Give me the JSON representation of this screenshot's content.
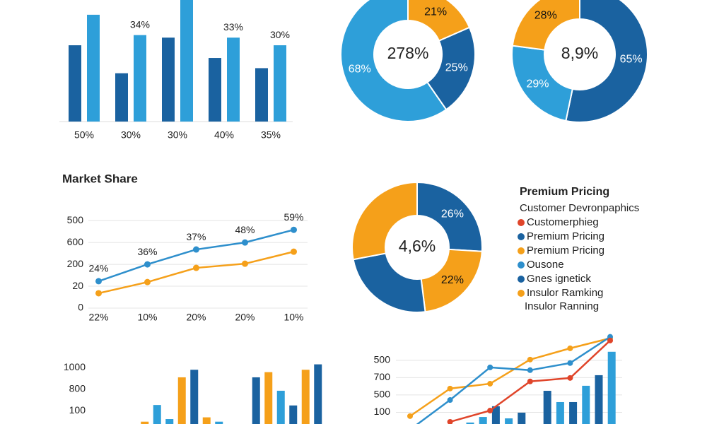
{
  "chart_data": [
    {
      "type": "grouped_bar",
      "categories": [
        "50%",
        "30%",
        "30%",
        "40%",
        "35%"
      ],
      "ylim": [
        0,
        47.8
      ],
      "series": [
        {
          "color": "#1a62a0",
          "values": [
            30,
            19,
            33,
            25,
            21
          ],
          "value_labels": [
            null,
            null,
            null,
            null,
            null
          ]
        },
        {
          "color": "#2e9fd9",
          "values": [
            42,
            34,
            48,
            33,
            30
          ],
          "value_labels": [
            null,
            "34%",
            null,
            "33%",
            "30%"
          ]
        }
      ]
    },
    {
      "type": "donut",
      "center_label": "278%",
      "values": [
        21,
        25,
        68
      ],
      "value_labels": [
        "21%",
        "25%",
        "68%"
      ],
      "colors": [
        "#f5a01a",
        "#1a62a0",
        "#2e9fd9"
      ]
    },
    {
      "type": "donut",
      "center_label": "8,9%",
      "values": [
        65,
        29,
        28
      ],
      "value_labels": [
        "65%",
        "29%",
        "28%"
      ],
      "colors": [
        "#1a62a0",
        "#2e9fd9",
        "#f5a01a"
      ]
    },
    {
      "type": "line",
      "title": "Market Share",
      "categories": [
        "22%",
        "10%",
        "20%",
        "20%",
        "10%"
      ],
      "ylim": [
        0,
        4.2
      ],
      "grid": true,
      "yticks": [
        {
          "value": 4,
          "label": "500"
        },
        {
          "value": 3,
          "label": "600"
        },
        {
          "value": 2,
          "label": "200"
        },
        {
          "value": 1,
          "label": "20"
        },
        0
      ],
      "series": [
        {
          "color": "#2e8fcc",
          "values": [
            1.23,
            2.0,
            2.68,
            3.0,
            3.58
          ],
          "annotations": [
            "24%",
            "36%",
            "37%",
            "48%",
            "59%"
          ]
        },
        {
          "color": "#f5a01a",
          "values": [
            0.68,
            1.19,
            1.84,
            2.03,
            2.58
          ]
        }
      ]
    },
    {
      "type": "donut",
      "center_label": "4,6%",
      "values": [
        26,
        22,
        24,
        28
      ],
      "value_labels": [
        "26%",
        "22%",
        null,
        null
      ],
      "colors": [
        "#1a62a0",
        "#f5a01a",
        "#1a62a0",
        "#f5a01a"
      ]
    },
    {
      "type": "bar",
      "ylim": [
        0,
        3.3
      ],
      "yticks": [
        {
          "value": 3,
          "label": "1000"
        },
        {
          "value": 2,
          "label": "800"
        },
        {
          "value": 1,
          "label": "100"
        }
      ],
      "values": [
        0.5,
        1.27,
        0.62,
        2.55,
        2.9,
        0.7,
        0.5,
        null,
        null,
        2.55,
        2.79,
        1.93,
        1.25,
        2.9,
        3.15
      ],
      "colors": [
        "#f5a01a",
        "#2e9fd9",
        "#2e9fd9",
        "#f5a01a",
        "#1a62a0",
        "#f5a01a",
        "#2e9fd9",
        null,
        null,
        "#1a62a0",
        "#f5a01a",
        "#2e9fd9",
        "#1a62a0",
        "#f5a01a",
        "#1a62a0"
      ]
    },
    {
      "type": "combo",
      "ylim": [
        0,
        5.5
      ],
      "grid": true,
      "yticks": [
        {
          "value": 4,
          "label": "500"
        },
        {
          "value": 3,
          "label": "700"
        },
        {
          "value": 2,
          "label": "500"
        },
        {
          "value": 1,
          "label": "100"
        }
      ],
      "series": [
        {
          "color": "#f5a01a",
          "values": [
            0.78,
            2.37,
            2.65,
            4.04,
            4.69,
            5.27
          ]
        },
        {
          "color": "#2e8fcc",
          "values": [
            0,
            1.71,
            3.59,
            3.43,
            3.84,
            5.35
          ]
        },
        {
          "color": "#e0452a",
          "values": [
            null,
            0.45,
            1.1,
            2.78,
            2.98,
            5.14
          ]
        }
      ],
      "bars": {
        "values": [
          0.41,
          0.73,
          1.35,
          0.65,
          0.98,
          null,
          2.24,
          1.59,
          1.59,
          2.53,
          3.14,
          4.49
        ],
        "colors": [
          "#2e9fd9",
          "#2e9fd9",
          "#1a62a0",
          "#2e9fd9",
          "#1a62a0",
          null,
          "#1a62a0",
          "#2e9fd9",
          "#1a62a0",
          "#2e9fd9",
          "#1a62a0",
          "#2e9fd9"
        ]
      }
    }
  ],
  "legend": {
    "title": "Premium Pricing",
    "subtitle": "Customer Devronpaphics",
    "items": [
      {
        "label": "Customerphieg",
        "color": "#e0452a"
      },
      {
        "label": "Premium Pricing",
        "color": "#1a62a0"
      },
      {
        "label": "Premium Pricing",
        "color": "#f5a01a"
      },
      {
        "label": "Ousone",
        "color": "#2e8fcc"
      },
      {
        "label": "Gnes ignetick",
        "color": "#1a62a0"
      },
      {
        "label": "Insulor Ramking",
        "color": "#f5a01a"
      }
    ],
    "footer": "Insulor Ranning"
  }
}
